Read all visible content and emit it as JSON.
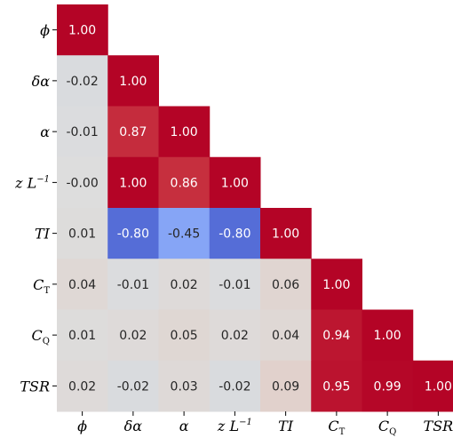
{
  "chart_data": {
    "type": "heatmap",
    "layout": "lower-triangle",
    "labels": [
      {
        "base": "ϕ",
        "sub": "",
        "sup": ""
      },
      {
        "base": "δα",
        "sub": "",
        "sup": ""
      },
      {
        "base": "α",
        "sub": "",
        "sup": ""
      },
      {
        "base": "z L",
        "sub": "",
        "sup": "−1"
      },
      {
        "base": "TI",
        "sub": "",
        "sup": ""
      },
      {
        "base": "C",
        "sub": "T",
        "sup": ""
      },
      {
        "base": "C",
        "sub": "Q",
        "sup": ""
      },
      {
        "base": "TSR",
        "sub": "",
        "sup": ""
      }
    ],
    "matrix": [
      [
        1.0
      ],
      [
        -0.02,
        1.0
      ],
      [
        -0.01,
        0.87,
        1.0
      ],
      [
        -0.0,
        1.0,
        0.86,
        1.0
      ],
      [
        0.01,
        -0.8,
        -0.45,
        -0.8,
        1.0
      ],
      [
        0.04,
        -0.01,
        0.02,
        -0.01,
        0.06,
        1.0
      ],
      [
        0.01,
        0.02,
        0.05,
        0.02,
        0.04,
        0.94,
        1.0
      ],
      [
        0.02,
        -0.02,
        0.03,
        -0.02,
        0.09,
        0.95,
        0.99,
        1.0
      ]
    ],
    "display": [
      [
        "1.00"
      ],
      [
        "-0.02",
        "1.00"
      ],
      [
        "-0.01",
        "0.87",
        "1.00"
      ],
      [
        "-0.00",
        "1.00",
        "0.86",
        "1.00"
      ],
      [
        "0.01",
        "-0.80",
        "-0.45",
        "-0.80",
        "1.00"
      ],
      [
        "0.04",
        "-0.01",
        "0.02",
        "-0.01",
        "0.06",
        "1.00"
      ],
      [
        "0.01",
        "0.02",
        "0.05",
        "0.02",
        "0.04",
        "0.94",
        "1.00"
      ],
      [
        "0.02",
        "-0.02",
        "0.03",
        "-0.02",
        "0.09",
        "0.95",
        "0.99",
        "1.00"
      ]
    ],
    "value_range": [
      -1,
      1
    ],
    "colormap": "coolwarm",
    "colorbar": false,
    "grid": false
  }
}
